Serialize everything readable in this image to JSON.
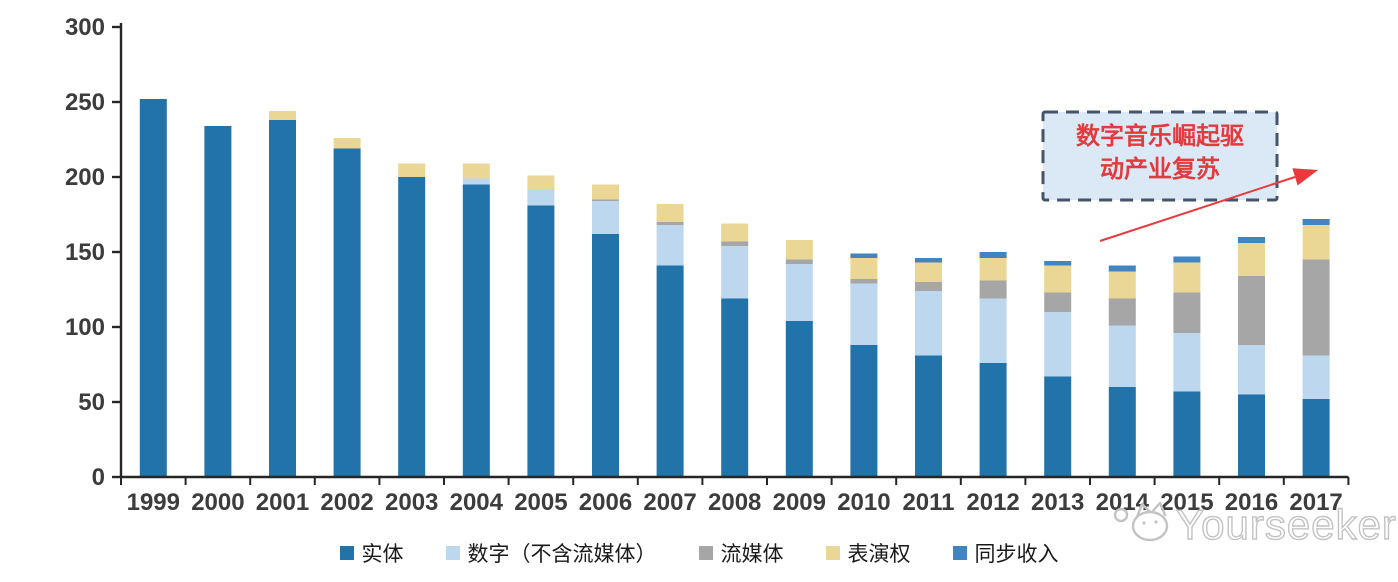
{
  "watermark": {
    "text": "Yourseeker"
  },
  "annotation": {
    "line1": "数字音乐崛起驱",
    "line2": "动产业复苏"
  },
  "colors": {
    "axis": "#262626",
    "annotation_fill": "#dbe8f6",
    "annotation_border": "#44546a",
    "annotation_text": "#e23b3f",
    "arrow": "#e8393d",
    "watermark": "#c3c3c3"
  },
  "chart_data": {
    "type": "bar",
    "stacked": true,
    "title": "",
    "xlabel": "",
    "ylabel": "",
    "grid": false,
    "legend_position": "bottom",
    "ylim": [
      0,
      300
    ],
    "y_ticks": [
      0,
      50,
      100,
      150,
      200,
      250,
      300
    ],
    "categories": [
      "1999",
      "2000",
      "2001",
      "2002",
      "2003",
      "2004",
      "2005",
      "2006",
      "2007",
      "2008",
      "2009",
      "2010",
      "2011",
      "2012",
      "2013",
      "2014",
      "2015",
      "2016",
      "2017"
    ],
    "series": [
      {
        "key": "physical",
        "name": "实体",
        "color": "#2273a9",
        "values": [
          252,
          234,
          238,
          219,
          200,
          195,
          181,
          162,
          141,
          119,
          104,
          88,
          81,
          76,
          67,
          60,
          57,
          55,
          52
        ]
      },
      {
        "key": "digital",
        "name": "数字（不含流媒体）",
        "color": "#bdd7ee",
        "values": [
          0,
          0,
          0,
          0,
          0,
          4,
          11,
          22,
          27,
          35,
          38,
          41,
          43,
          43,
          43,
          41,
          39,
          33,
          29
        ]
      },
      {
        "key": "streaming",
        "name": "流媒体",
        "color": "#a6a6a6",
        "values": [
          0,
          0,
          0,
          0,
          0,
          0,
          0,
          1,
          2,
          3,
          3,
          3,
          6,
          12,
          13,
          18,
          27,
          46,
          64
        ]
      },
      {
        "key": "performance",
        "name": "表演权",
        "color": "#ebd795",
        "values": [
          0,
          0,
          6,
          7,
          9,
          10,
          9,
          10,
          12,
          12,
          13,
          14,
          13,
          15,
          18,
          18,
          20,
          22,
          23
        ]
      },
      {
        "key": "sync",
        "name": "同步收入",
        "color": "#4084c2",
        "values": [
          0,
          0,
          0,
          0,
          0,
          0,
          0,
          0,
          0,
          0,
          0,
          3,
          3,
          4,
          3,
          4,
          4,
          4,
          4
        ]
      }
    ],
    "totals": [
      252,
      234,
      244,
      226,
      209,
      209,
      201,
      195,
      182,
      169,
      158,
      149,
      146,
      150,
      144,
      141,
      147,
      160,
      172
    ]
  }
}
